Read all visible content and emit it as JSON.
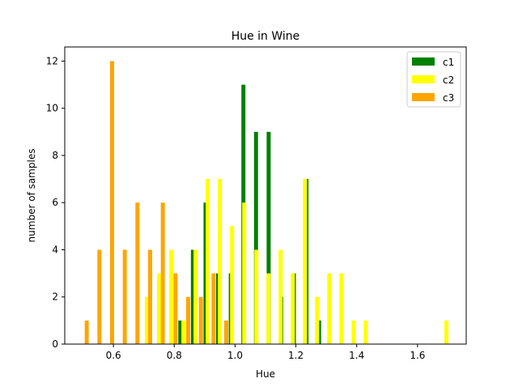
{
  "chart_data": {
    "type": "bar",
    "title": "Hue in Wine",
    "xlabel": "Hue",
    "ylabel": "number of samples",
    "xlim": [
      0.44,
      1.76
    ],
    "ylim": [
      0,
      12.6
    ],
    "xticks": [
      0.6,
      0.8,
      1.0,
      1.2,
      1.4,
      1.6
    ],
    "xtick_labels": [
      "0.6",
      "0.8",
      "1.0",
      "1.2",
      "1.4",
      "1.6"
    ],
    "yticks": [
      0,
      2,
      4,
      6,
      8,
      10,
      12
    ],
    "grid": false,
    "legend_position": "top-right",
    "bar_width": 0.0132,
    "series": [
      {
        "name": "c1",
        "color": "#008000",
        "x": [
          0.8199,
          0.8614,
          0.9029,
          0.9444,
          0.9859,
          1.0274,
          1.0689,
          1.1104,
          1.1519,
          1.1934,
          1.2349,
          1.2764
        ],
        "values": [
          1,
          4,
          6,
          3,
          3,
          11,
          9,
          9,
          2,
          3,
          7,
          1
        ]
      },
      {
        "name": "c2",
        "color": "#ffff00",
        "x": [
          0.7103,
          0.7502,
          0.7902,
          0.8301,
          0.8701,
          0.9101,
          0.9501,
          0.9901,
          1.03,
          1.07,
          1.11,
          1.1499,
          1.1899,
          1.2299,
          1.2699,
          1.3098,
          1.3498,
          1.3898,
          1.4298,
          1.695
        ],
        "values": [
          2,
          3,
          4,
          1,
          4,
          7,
          7,
          5,
          6,
          4,
          3,
          4,
          3,
          7,
          2,
          3,
          3,
          1,
          1,
          1
        ]
      },
      {
        "name": "c3",
        "color": "#ffa500",
        "x": [
          0.5122,
          0.5539,
          0.5956,
          0.6373,
          0.679,
          0.7207,
          0.7624,
          0.8041,
          0.8458,
          0.8875,
          0.9292,
          0.9709
        ],
        "values": [
          1,
          4,
          12,
          4,
          6,
          4,
          6,
          3,
          2,
          2,
          3,
          1
        ]
      }
    ]
  }
}
